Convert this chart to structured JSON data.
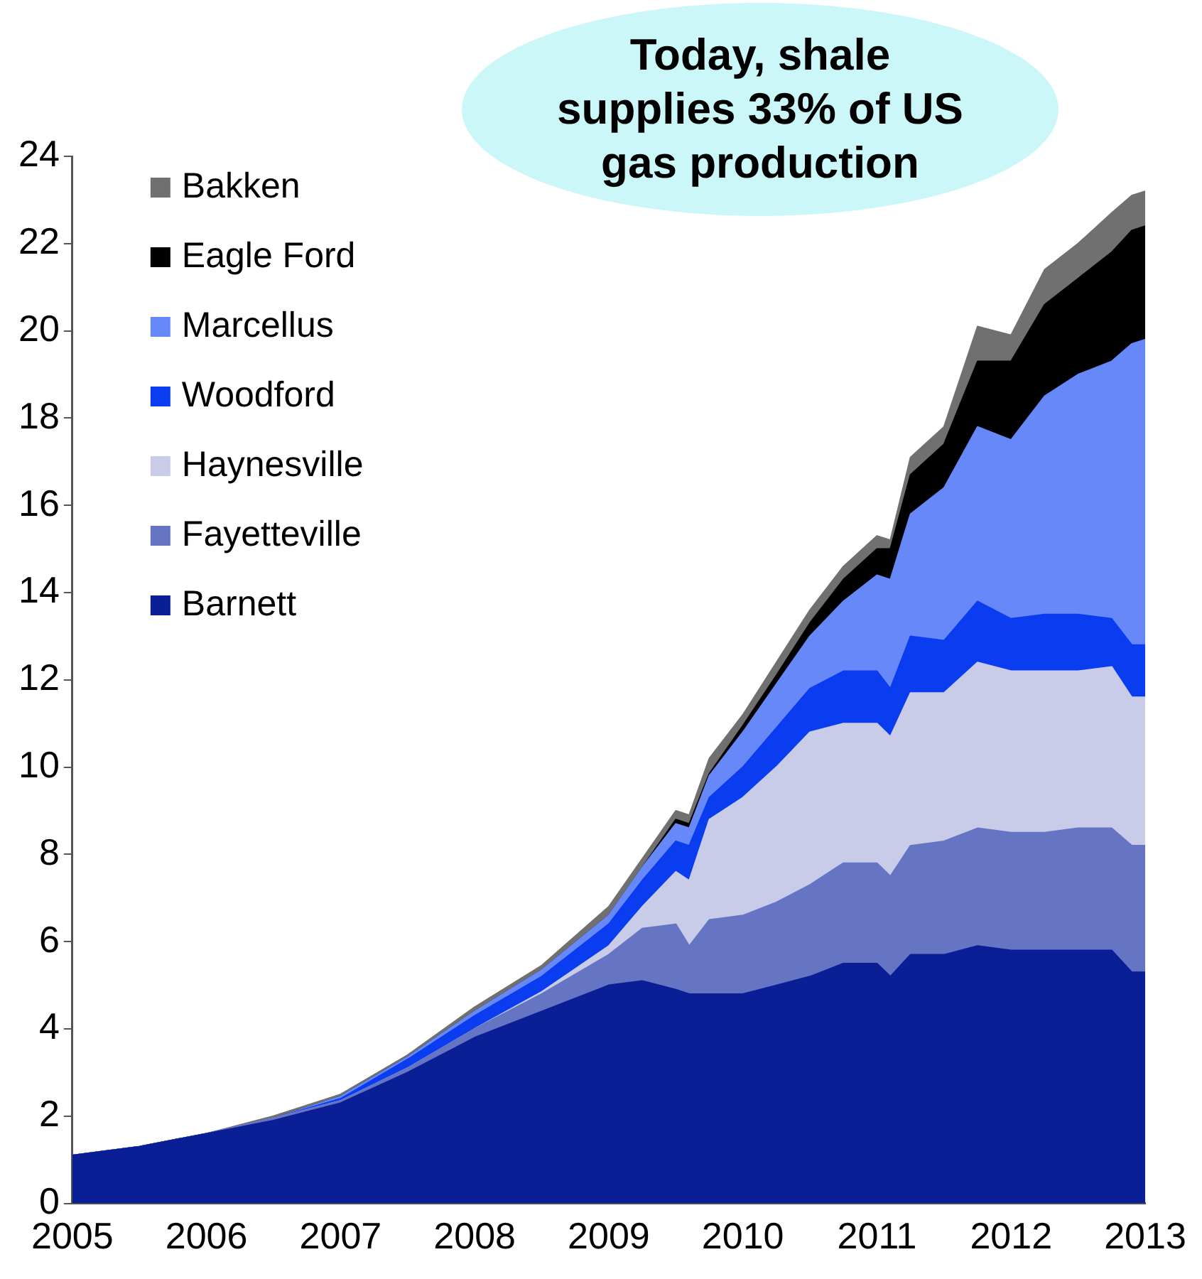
{
  "chart_data": {
    "type": "area",
    "stacked": true,
    "grid": false,
    "legend": "top left",
    "marker": "none",
    "annotations": [
      "Today, shale supplies 33% of US gas production"
    ],
    "x": [
      2005,
      2005.5,
      2006,
      2006.5,
      2007,
      2007.5,
      2008,
      2008.5,
      2009,
      2009.25,
      2009.5,
      2009.6,
      2009.75,
      2010,
      2010.25,
      2010.5,
      2010.75,
      2011,
      2011.1,
      2011.25,
      2011.5,
      2011.75,
      2012,
      2012.25,
      2012.5,
      2012.75,
      2012.9,
      2013
    ],
    "xlim": [
      2005,
      2013
    ],
    "xticks": [
      2005,
      2006,
      2007,
      2008,
      2009,
      2010,
      2011,
      2012,
      2013
    ],
    "ylim": [
      0,
      24
    ],
    "yticks": [
      0,
      2,
      4,
      6,
      8,
      10,
      12,
      14,
      16,
      18,
      20,
      22,
      24
    ],
    "series": [
      {
        "name": "Barnett",
        "color": "#0a1e96",
        "values": [
          1.1,
          1.3,
          1.6,
          1.9,
          2.3,
          3.0,
          3.8,
          4.4,
          5.0,
          5.1,
          4.9,
          4.8,
          4.8,
          4.8,
          5.0,
          5.2,
          5.5,
          5.5,
          5.2,
          5.7,
          5.7,
          5.9,
          5.8,
          5.8,
          5.8,
          5.8,
          5.3,
          5.3
        ]
      },
      {
        "name": "Fayetteville",
        "color": "#6674c4",
        "values": [
          0,
          0,
          0,
          0.05,
          0.05,
          0.1,
          0.2,
          0.4,
          0.7,
          1.2,
          1.5,
          1.1,
          1.7,
          1.8,
          1.9,
          2.1,
          2.3,
          2.3,
          2.3,
          2.5,
          2.6,
          2.7,
          2.7,
          2.7,
          2.8,
          2.8,
          2.9,
          2.9
        ]
      },
      {
        "name": "Haynesville",
        "color": "#c8cce8",
        "values": [
          0,
          0,
          0,
          0,
          0,
          0,
          0,
          0.05,
          0.2,
          0.5,
          1.2,
          1.5,
          2.3,
          2.7,
          3.1,
          3.5,
          3.2,
          3.2,
          3.2,
          3.5,
          3.4,
          3.8,
          3.7,
          3.7,
          3.6,
          3.7,
          3.4,
          3.4
        ]
      },
      {
        "name": "Woodford",
        "color": "#0a3cf0",
        "values": [
          0,
          0,
          0,
          0,
          0.05,
          0.2,
          0.3,
          0.35,
          0.5,
          0.6,
          0.7,
          0.8,
          0.5,
          0.7,
          0.9,
          1.0,
          1.2,
          1.2,
          1.1,
          1.3,
          1.2,
          1.4,
          1.2,
          1.3,
          1.3,
          1.1,
          1.2,
          1.2
        ]
      },
      {
        "name": "Marcellus",
        "color": "#6688f8",
        "values": [
          0,
          0,
          0,
          0,
          0.05,
          0.05,
          0.1,
          0.15,
          0.2,
          0.3,
          0.4,
          0.4,
          0.5,
          0.8,
          1.0,
          1.2,
          1.6,
          2.2,
          2.5,
          2.8,
          3.5,
          4.0,
          4.1,
          5.0,
          5.5,
          5.9,
          6.9,
          7.0
        ]
      },
      {
        "name": "Eagle Ford",
        "color": "#000000",
        "values": [
          0,
          0,
          0,
          0,
          0,
          0,
          0,
          0,
          0,
          0,
          0.1,
          0.1,
          0.05,
          0.15,
          0.2,
          0.3,
          0.5,
          0.6,
          0.7,
          0.9,
          1.0,
          1.5,
          1.8,
          2.1,
          2.2,
          2.5,
          2.6,
          2.6
        ]
      },
      {
        "name": "Bakken",
        "color": "#707070",
        "values": [
          0,
          0,
          0,
          0.05,
          0.05,
          0.05,
          0.1,
          0.1,
          0.2,
          0.2,
          0.2,
          0.2,
          0.35,
          0.25,
          0.3,
          0.3,
          0.3,
          0.3,
          0.2,
          0.4,
          0.4,
          0.8,
          0.6,
          0.8,
          0.8,
          0.9,
          0.8,
          0.8
        ]
      }
    ]
  }
}
